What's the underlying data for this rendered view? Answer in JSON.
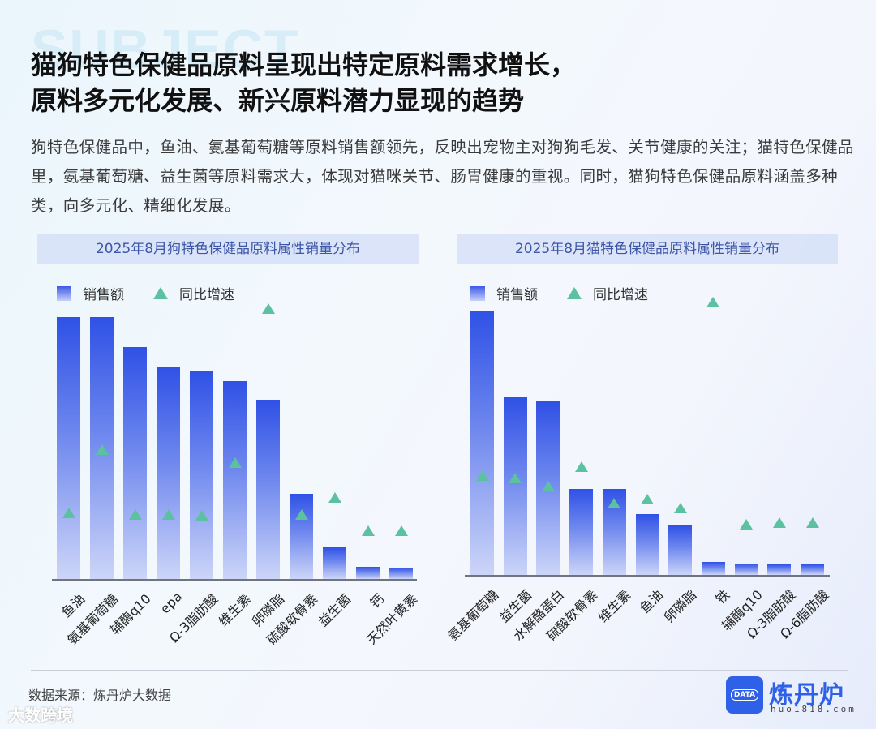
{
  "header": {
    "watermark": "SUBJECT",
    "title_line1": "猫狗特色保健品原料呈现出特定原料需求增长，",
    "title_line2": "原料多元化发展、新兴原料潜力显现的趋势",
    "description": "狗特色保健品中，鱼油、氨基葡萄糖等原料销售额领先，反映出宠物主对狗狗毛发、关节健康的关注；猫特色保健品里，氨基葡萄糖、益生菌等原料需求大，体现对猫咪关节、肠胃健康的重视。同时，猫狗特色保健品原料涵盖多种类，向多元化、精细化发展。"
  },
  "legend": {
    "bar": "销售额",
    "marker": "同比增速"
  },
  "colors": {
    "bar_top": "#2f51e6",
    "bar_bottom": "#ccd5f8",
    "marker": "#5cc1a0",
    "title_bg": "#d6e0f7",
    "title_text": "#3d56a6",
    "brand": "#2f60e8"
  },
  "chart_data": [
    {
      "type": "bar",
      "title": "2025年8月狗特色保健品原料属性销量分布",
      "categories": [
        "鱼油",
        "氨基葡萄糖",
        "辅酶q10",
        "epa",
        "Ω-3脂肪酸",
        "维生素",
        "卵磷脂",
        "硫酸软骨素",
        "益生菌",
        "钙",
        "天然叶黄素"
      ],
      "series": [
        {
          "name": "销售额",
          "kind": "bar",
          "values": [
            100,
            100,
            88.6,
            81.2,
            79.4,
            75.7,
            68.3,
            32.6,
            12.0,
            4.6,
            4.3
          ]
        },
        {
          "name": "同比增速",
          "kind": "marker",
          "values": [
            23.4,
            47.7,
            22.8,
            22.8,
            22.5,
            42.8,
            102.2,
            22.8,
            29.5,
            16.6,
            16.6
          ]
        }
      ],
      "ylabel": "",
      "xlabel": "",
      "grid": false,
      "legend_position": "top-left",
      "note": "values relative (no axis shown)"
    },
    {
      "type": "bar",
      "title": "2025年8月猫特色保健品原料属性销量分布",
      "categories": [
        "氨基葡萄糖",
        "益生菌",
        "水解酪蛋白",
        "硫酸软骨素",
        "维生素",
        "鱼油",
        "卵磷脂",
        "铁",
        "辅酶q10",
        "Ω-3脂肪酸",
        "Ω-6脂肪酸"
      ],
      "series": [
        {
          "name": "销售额",
          "kind": "bar",
          "values": [
            100,
            67.2,
            65.6,
            32.5,
            32.5,
            23.0,
            18.7,
            4.9,
            4.3,
            4.0,
            4.0
          ]
        },
        {
          "name": "同比增速",
          "kind": "marker",
          "values": [
            36.2,
            35.3,
            32.2,
            39.6,
            25.5,
            27.3,
            23.9,
            103.1,
            17.5,
            18.1,
            18.1
          ]
        }
      ],
      "ylabel": "",
      "xlabel": "",
      "grid": false,
      "legend_position": "top-left",
      "note": "values relative (no axis shown)"
    }
  ],
  "footer": {
    "source": "数据来源：炼丹炉大数据",
    "watermark": "大数跨境",
    "brand_name": "炼丹炉",
    "brand_url": "huo1818.com",
    "brand_icon_text": "DATA"
  }
}
